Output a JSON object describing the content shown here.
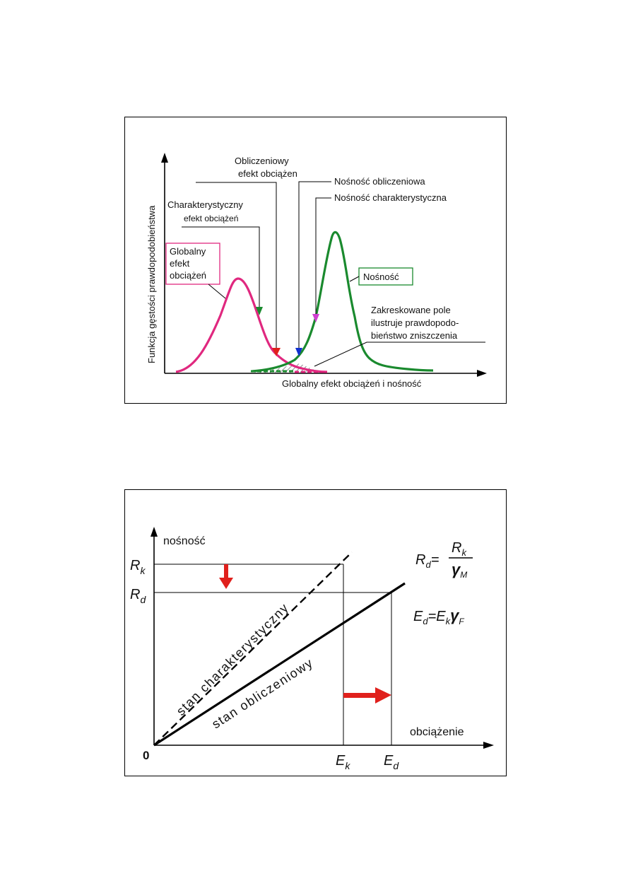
{
  "top_diagram": {
    "y_axis_label": "Funkcja gęstości prawdopodobieństwa",
    "x_axis_label": "Globalny efekt obciążeń i nośność",
    "label_obliczeniowy_line1": "Obliczeniowy",
    "label_obliczeniowy_line2": "efekt obciążen",
    "label_charakterystyczny_line1": "Charakterystyczny",
    "label_charakterystyczny_line2": "efekt obciążeń",
    "box_globalny_line1": "Globalny",
    "box_globalny_line2": "efekt",
    "box_globalny_line3": "obciążeń",
    "label_nosnosc_obliczeniowa": "Nośność obliczeniowa",
    "label_nosnosc_charakterystyczna": "Nośność charakterystyczna",
    "box_nosnosc": "Nośność",
    "label_zakreskowane_line1": "Zakreskowane pole",
    "label_zakreskowane_line2": "ilustruje prawdopodo-",
    "label_zakreskowane_line3": "bieństwo zniszczenia",
    "colors": {
      "load": "#e0287f",
      "resistance": "#1a8a2e",
      "design_load_marker": "#e0201c",
      "design_resistance_marker": "#1030d0",
      "char_resistance_marker": "#d040d0"
    }
  },
  "bottom_diagram": {
    "y_axis_label": "nośność",
    "x_axis_label": "obciążenie",
    "origin_label": "0",
    "rk_main": "R",
    "rk_sub": "k",
    "rd_main": "R",
    "rd_sub": "d",
    "ek_main": "E",
    "ek_sub": "k",
    "ed_main": "E",
    "ed_sub": "d",
    "line_characteristic_label": "stan charakterystyczny",
    "line_design_label": "stan obliczeniowy",
    "formula1": {
      "lhs_main": "R",
      "lhs_sub": "d",
      "eq": "=",
      "num_main": "R",
      "num_sub": "k",
      "den_main": "γ",
      "den_sub": "M"
    },
    "formula2": {
      "lhs_main": "E",
      "lhs_sub": "d",
      "eq": "=",
      "r1_main": "E",
      "r1_sub": "k",
      "r2_main": "γ",
      "r2_sub": "F"
    },
    "colors": {
      "arrow": "#e0201c"
    }
  }
}
